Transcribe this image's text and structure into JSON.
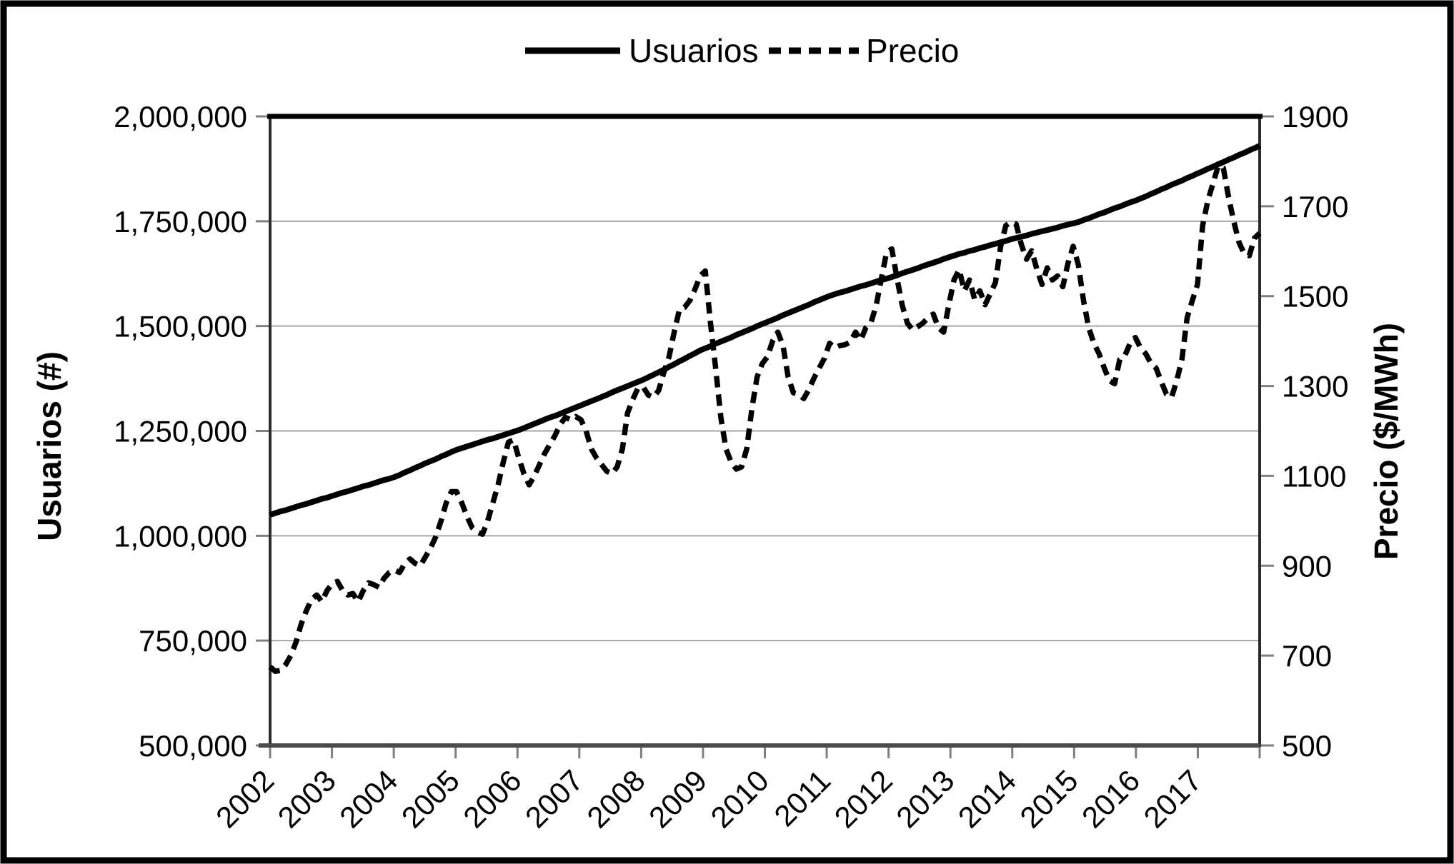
{
  "chart_data": {
    "type": "line",
    "title": "",
    "grid": "horizontal",
    "colors": {
      "line": "#000000",
      "grid": "#a6a6a6",
      "tick": "#7f7f7f",
      "background": "#ffffff",
      "border": "#000000"
    },
    "legend": {
      "position": "top",
      "entries": [
        {
          "label": "Usuarios",
          "line": "solid"
        },
        {
          "label": "Precio",
          "line": "dashed"
        }
      ]
    },
    "x_axis": {
      "unit": "monthly from Jan 2002 to Dec 2017",
      "tick_labels": [
        "2002",
        "2003",
        "2004",
        "2005",
        "2006",
        "2007",
        "2008",
        "2009",
        "2010",
        "2011",
        "2012",
        "2013",
        "2014",
        "2015",
        "2016",
        "2017"
      ]
    },
    "y_axis_left": {
      "title": "Usuarios (#)",
      "min": 500000,
      "max": 2000000,
      "tick_step": 250000,
      "tick_labels": [
        "2,000,000",
        "1,750,000",
        "1,500,000",
        "1,250,000",
        "1,000,000",
        "750,000",
        "500,000"
      ]
    },
    "y_axis_right": {
      "title": "Precio ($/MWh)",
      "min": 500,
      "max": 1900,
      "tick_step": 200,
      "tick_labels": [
        "1900",
        "1700",
        "1500",
        "1300",
        "1100",
        "900",
        "700",
        "500"
      ]
    },
    "series": [
      {
        "name": "Usuarios",
        "axis": "left",
        "style": "solid",
        "values": [
          1050000,
          1054000,
          1058000,
          1061000,
          1065000,
          1069000,
          1073000,
          1076000,
          1080000,
          1084000,
          1088000,
          1091000,
          1095000,
          1099000,
          1103000,
          1106000,
          1110000,
          1114000,
          1118000,
          1121000,
          1125000,
          1129000,
          1133000,
          1136000,
          1140000,
          1145000,
          1151000,
          1156000,
          1162000,
          1167000,
          1173000,
          1178000,
          1183000,
          1189000,
          1194000,
          1200000,
          1205000,
          1209000,
          1213000,
          1217000,
          1221000,
          1225000,
          1229000,
          1232000,
          1236000,
          1240000,
          1244000,
          1248000,
          1252000,
          1257000,
          1262000,
          1267000,
          1272000,
          1277000,
          1282000,
          1286000,
          1291000,
          1296000,
          1301000,
          1306000,
          1311000,
          1316000,
          1321000,
          1326000,
          1331000,
          1336000,
          1342000,
          1347000,
          1352000,
          1357000,
          1362000,
          1367000,
          1372000,
          1378000,
          1384000,
          1390000,
          1396000,
          1403000,
          1409000,
          1416000,
          1422000,
          1429000,
          1435000,
          1442000,
          1447000,
          1452000,
          1458000,
          1463000,
          1468000,
          1473000,
          1479000,
          1484000,
          1489000,
          1494000,
          1500000,
          1505000,
          1510000,
          1515000,
          1520000,
          1526000,
          1531000,
          1536000,
          1541000,
          1546000,
          1551000,
          1557000,
          1562000,
          1567000,
          1572000,
          1576000,
          1580000,
          1583000,
          1587000,
          1591000,
          1595000,
          1598000,
          1602000,
          1606000,
          1610000,
          1613000,
          1617000,
          1621000,
          1626000,
          1630000,
          1634000,
          1638000,
          1643000,
          1647000,
          1651000,
          1655000,
          1660000,
          1664000,
          1668000,
          1672000,
          1675000,
          1679000,
          1682000,
          1686000,
          1689000,
          1693000,
          1696000,
          1700000,
          1703000,
          1707000,
          1710000,
          1713000,
          1716000,
          1720000,
          1723000,
          1726000,
          1729000,
          1732000,
          1735000,
          1739000,
          1742000,
          1745000,
          1748000,
          1753000,
          1757000,
          1762000,
          1767000,
          1771000,
          1776000,
          1781000,
          1785000,
          1790000,
          1795000,
          1799000,
          1804000,
          1809000,
          1815000,
          1820000,
          1826000,
          1831000,
          1837000,
          1842000,
          1847000,
          1853000,
          1858000,
          1864000,
          1869000,
          1875000,
          1880000,
          1886000,
          1891000,
          1897000,
          1902000,
          1908000,
          1913000,
          1919000,
          1924000,
          1930000
        ]
      },
      {
        "name": "Precio",
        "axis": "right",
        "style": "dashed",
        "values": [
          675,
          665,
          667,
          680,
          700,
          730,
          770,
          800,
          825,
          835,
          820,
          845,
          860,
          865,
          845,
          835,
          838,
          820,
          845,
          862,
          858,
          852,
          872,
          885,
          890,
          885,
          905,
          915,
          905,
          900,
          920,
          940,
          965,
          1000,
          1040,
          1065,
          1065,
          1040,
          1010,
          985,
          975,
          970,
          1000,
          1040,
          1080,
          1130,
          1175,
          1180,
          1140,
          1105,
          1080,
          1100,
          1125,
          1150,
          1170,
          1190,
          1215,
          1230,
          1225,
          1232,
          1225,
          1200,
          1160,
          1140,
          1125,
          1110,
          1105,
          1120,
          1160,
          1240,
          1270,
          1295,
          1298,
          1280,
          1275,
          1290,
          1330,
          1365,
          1420,
          1470,
          1475,
          1490,
          1515,
          1545,
          1556,
          1440,
          1340,
          1230,
          1160,
          1130,
          1115,
          1120,
          1160,
          1250,
          1320,
          1350,
          1365,
          1400,
          1420,
          1390,
          1320,
          1285,
          1282,
          1272,
          1292,
          1318,
          1340,
          1362,
          1395,
          1385,
          1390,
          1392,
          1398,
          1420,
          1402,
          1430,
          1442,
          1480,
          1540,
          1598,
          1605,
          1540,
          1480,
          1440,
          1425,
          1432,
          1440,
          1452,
          1460,
          1430,
          1420,
          1480,
          1536,
          1559,
          1512,
          1536,
          1492,
          1512,
          1481,
          1505,
          1530,
          1610,
          1657,
          1665,
          1660,
          1615,
          1582,
          1601,
          1560,
          1526,
          1563,
          1536,
          1545,
          1521,
          1573,
          1611,
          1570,
          1490,
          1430,
          1395,
          1372,
          1340,
          1312,
          1305,
          1359,
          1368,
          1395,
          1408,
          1385,
          1372,
          1351,
          1340,
          1310,
          1282,
          1275,
          1312,
          1359,
          1452,
          1490,
          1526,
          1657,
          1713,
          1751,
          1790,
          1785,
          1720,
          1667,
          1620,
          1595,
          1590,
          1629,
          1640
        ]
      }
    ]
  }
}
